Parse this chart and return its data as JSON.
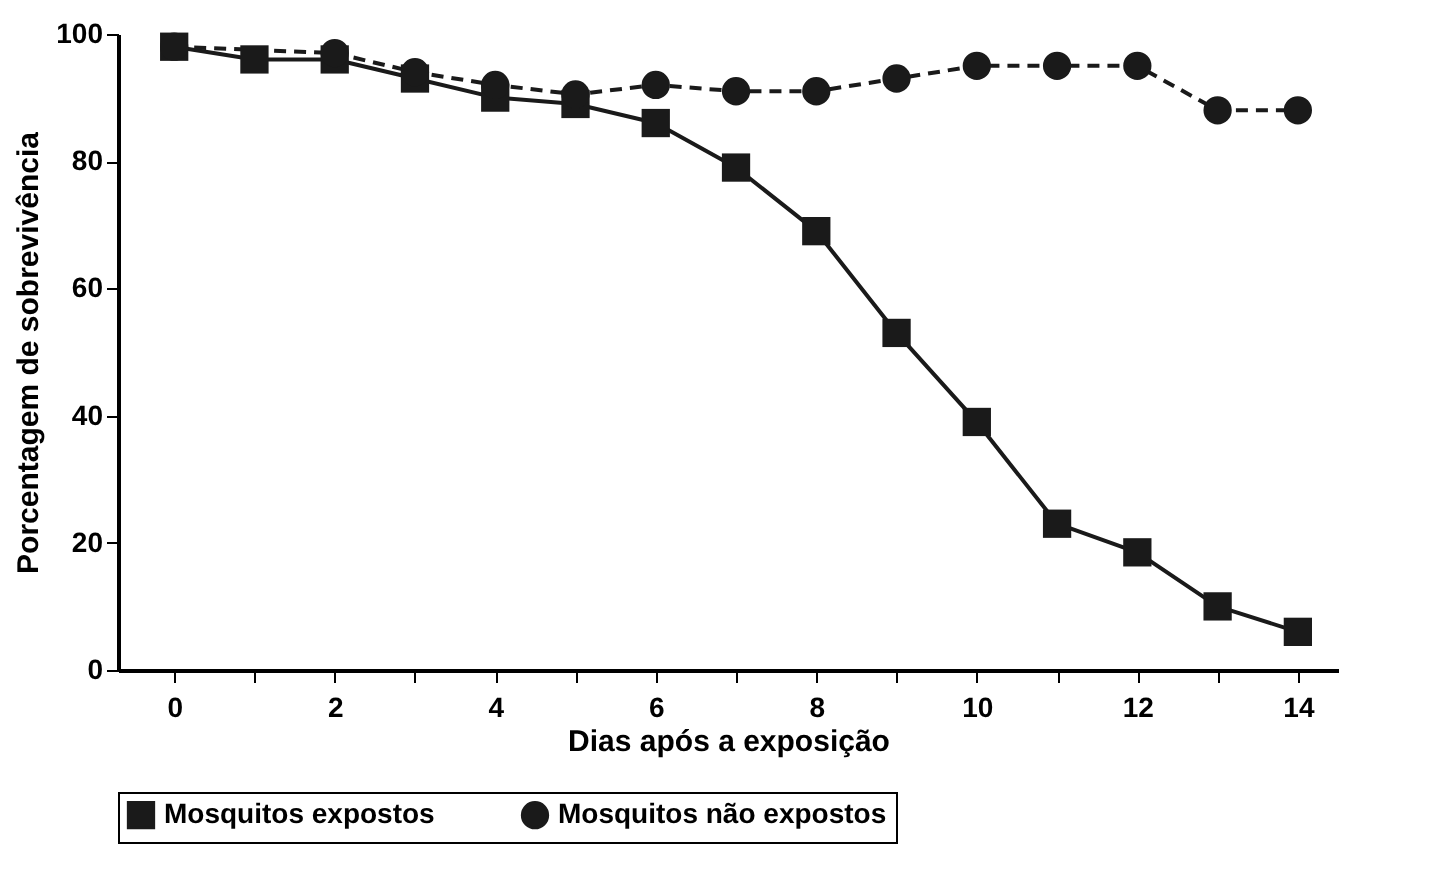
{
  "chart_data": {
    "type": "line",
    "xlabel": "Dias após a exposição",
    "ylabel": "Porcentagem de sobrevivência",
    "xlim": [
      -0.7,
      14.5
    ],
    "ylim": [
      0,
      100
    ],
    "xticks": [
      0,
      {
        "value": 1,
        "label": null
      },
      2,
      {
        "value": 3,
        "label": null
      },
      4,
      {
        "value": 5,
        "label": null
      },
      6,
      {
        "value": 7,
        "label": null
      },
      8,
      {
        "value": 9,
        "label": null
      },
      10,
      {
        "value": 11,
        "label": null
      },
      12,
      {
        "value": 13,
        "label": null
      },
      14
    ],
    "yticks": [
      0,
      20,
      40,
      60,
      80,
      100
    ],
    "grid": false,
    "legend": "bottom",
    "series": [
      {
        "name": "Mosquitos expostos",
        "color": "#1a1a1a",
        "marker": "square",
        "line_style": "solid",
        "x": [
          0,
          1,
          2,
          3,
          4,
          5,
          6,
          7,
          8,
          9,
          10,
          11,
          12,
          13,
          14
        ],
        "values": [
          98,
          96,
          96,
          93,
          90,
          89,
          86,
          79,
          69,
          53,
          39,
          23,
          18.5,
          10,
          6
        ]
      },
      {
        "name": "Mosquitos não expostos",
        "color": "#1a1a1a",
        "marker": "circle",
        "line_style": "dashed",
        "x": [
          0,
          2,
          3,
          4,
          5,
          6,
          7,
          8,
          9,
          10,
          11,
          12,
          13,
          14
        ],
        "values": [
          98,
          97,
          94,
          92,
          90.5,
          92,
          91,
          91,
          93,
          95,
          95,
          95,
          88,
          88
        ]
      }
    ]
  }
}
